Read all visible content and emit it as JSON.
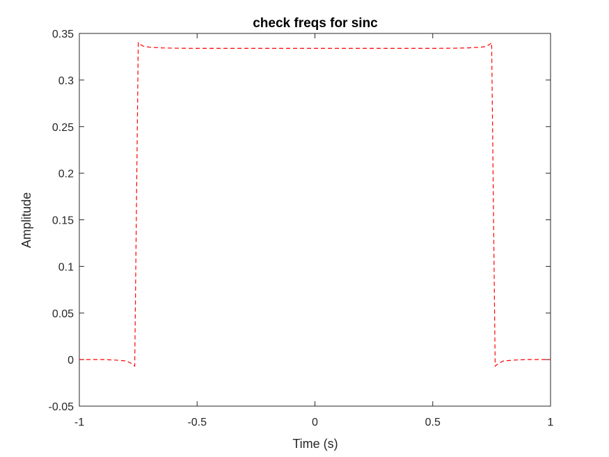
{
  "chart_data": {
    "type": "line",
    "title": "check freqs for sinc",
    "xlabel": "Time (s)",
    "ylabel": "Amplitude",
    "xlim": [
      -1,
      1
    ],
    "ylim": [
      -0.05,
      0.35
    ],
    "xticks": [
      -1,
      -0.5,
      0,
      0.5,
      1
    ],
    "xtick_labels": [
      "-1",
      "-0.5",
      "0",
      "0.5",
      "1"
    ],
    "yticks": [
      -0.05,
      0,
      0.05,
      0.1,
      0.15,
      0.2,
      0.25,
      0.3,
      0.35
    ],
    "ytick_labels": [
      "-0.05",
      "0",
      "0.05",
      "0.1",
      "0.15",
      "0.2",
      "0.25",
      "0.3",
      "0.35"
    ],
    "grid": false,
    "box": true,
    "series": [
      {
        "color": "#ff0000",
        "line_style": "dashed",
        "x": [
          -1,
          -0.95,
          -0.9,
          -0.85,
          -0.8,
          -0.78,
          -0.765,
          -0.75,
          -0.74,
          -0.73,
          -0.72,
          -0.7,
          -0.65,
          -0.6,
          -0.5,
          -0.4,
          -0.3,
          -0.2,
          -0.1,
          0,
          0.1,
          0.2,
          0.3,
          0.4,
          0.5,
          0.6,
          0.65,
          0.7,
          0.72,
          0.73,
          0.74,
          0.75,
          0.765,
          0.78,
          0.8,
          0.85,
          0.9,
          0.95,
          1
        ],
        "y": [
          0,
          0,
          0,
          -0.0005,
          -0.0015,
          -0.004,
          -0.007,
          0.34,
          0.338,
          0.3365,
          0.3358,
          0.3352,
          0.3345,
          0.3342,
          0.334,
          0.334,
          0.334,
          0.334,
          0.334,
          0.334,
          0.334,
          0.334,
          0.334,
          0.334,
          0.334,
          0.3342,
          0.3345,
          0.3352,
          0.3358,
          0.3365,
          0.338,
          0.34,
          -0.007,
          -0.004,
          -0.0015,
          -0.0005,
          0,
          0,
          0
        ]
      }
    ]
  }
}
